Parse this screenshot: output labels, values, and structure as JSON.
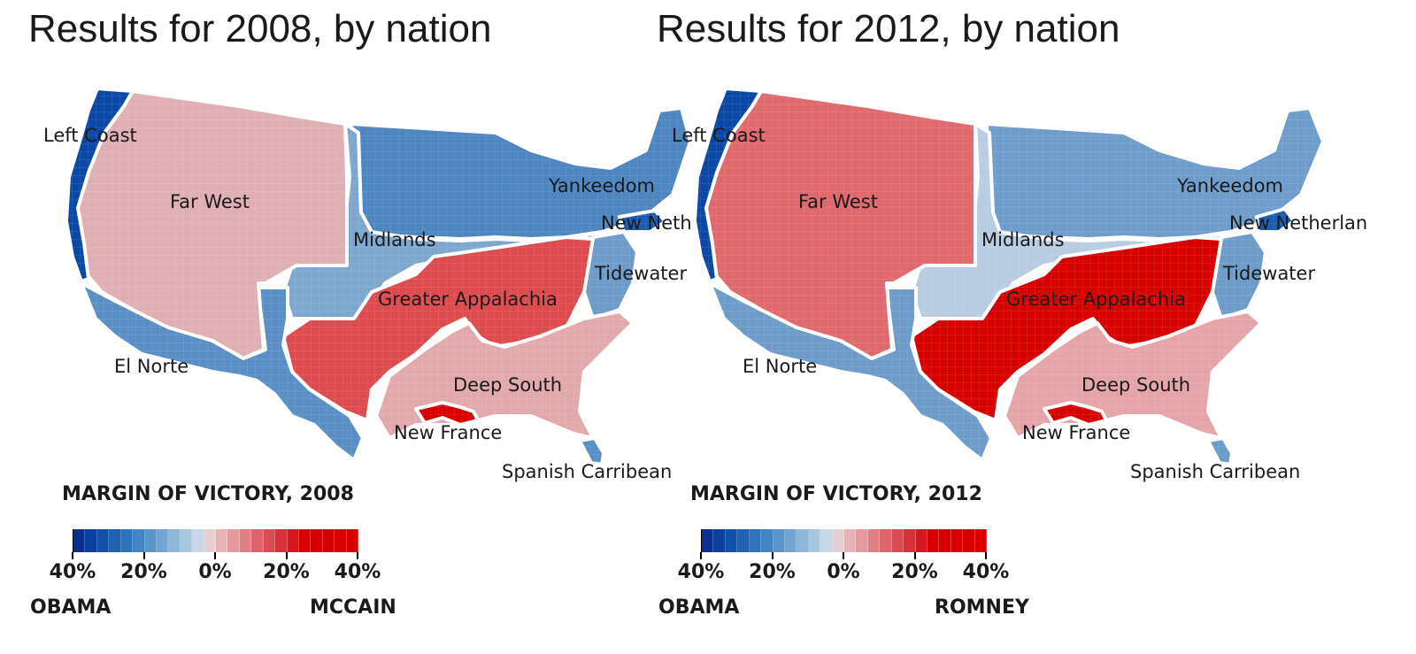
{
  "titles": {
    "left": "Results for 2008, by nation",
    "right": "Results for 2012, by nation"
  },
  "regions": {
    "left_coast": "Left Coast",
    "far_west": "Far West",
    "yankeedom": "Yankeedom",
    "new_netherland_2008": "New Neth",
    "new_netherland_2012": "New Netherlan",
    "midlands": "Midlands",
    "tidewater": "Tidewater",
    "greater_appalachia": "Greater Appalachia",
    "el_norte": "El Norte",
    "deep_south": "Deep South",
    "new_france": "New France",
    "spanish_caribbean": "Spanish Carribean"
  },
  "legend_2008": {
    "title": "MARGIN OF VICTORY, 2008",
    "ticks": [
      "40%",
      "20%",
      "0%",
      "20%",
      "40%"
    ],
    "left_label": "OBAMA",
    "right_label": "MCCAIN"
  },
  "legend_2012": {
    "title": "MARGIN OF VICTORY, 2012",
    "ticks": [
      "40%",
      "20%",
      "0%",
      "20%",
      "40%"
    ],
    "left_label": "OBAMA",
    "right_label": "ROMNEY"
  },
  "colors": {
    "left_coast_2008": "#0b48a6",
    "far_west_2008": "#dfafb3",
    "yankeedom_2008": "#4d86c0",
    "new_netherland_2008": "#1a5cb0",
    "midlands_2008": "#7ea7cf",
    "tidewater_2008": "#6e9cca",
    "greater_appalachia_2008": "#de4b4f",
    "el_norte_2008": "#5a8fc5",
    "deep_south_2008": "#e2a9ad",
    "new_france_2008": "#d80000",
    "spanish_caribbean_2008": "#5a8fc5",
    "left_coast_2012": "#0b48a6",
    "far_west_2012": "#e0696e",
    "yankeedom_2012": "#6f9dcb",
    "new_netherland_2012": "#1a5cb0",
    "midlands_2012": "#b8cde2",
    "tidewater_2012": "#6e9cca",
    "greater_appalachia_2012": "#d60000",
    "el_norte_2012": "#6e9cca",
    "deep_south_2012": "#e4a4a8",
    "new_france_2012": "#d80000",
    "spanish_caribbean_2012": "#6e9cca",
    "legend_scale": [
      "#0a2f8f",
      "#0d3f9c",
      "#1150a8",
      "#1d62b3",
      "#2e74bc",
      "#4385c4",
      "#5a96cb",
      "#72a5d1",
      "#8db6d8",
      "#a9c6df",
      "#c7d7e6",
      "#e6d0d2",
      "#e6b3b6",
      "#e49a9d",
      "#e18084",
      "#de656b",
      "#db4b52",
      "#d83038",
      "#d81622",
      "#d80000",
      "#d80000",
      "#d80000",
      "#d80000",
      "#d80000"
    ]
  }
}
